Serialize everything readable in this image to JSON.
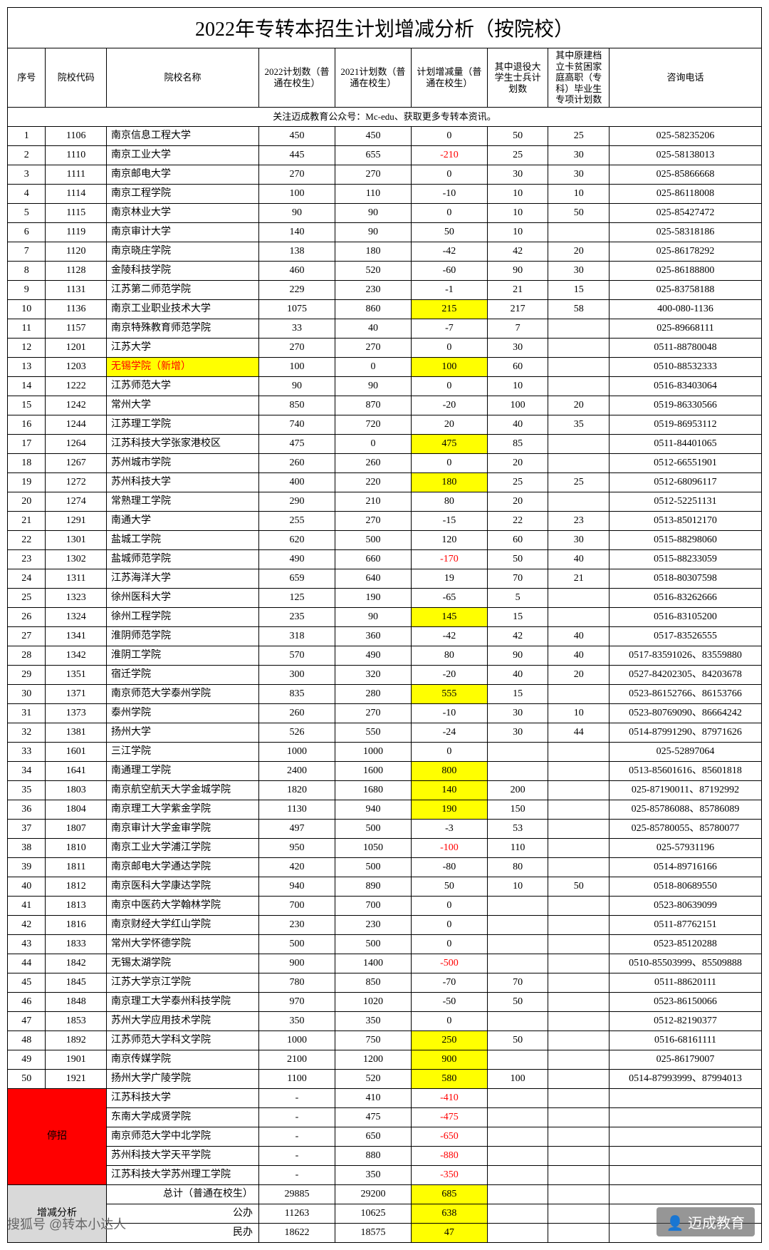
{
  "title": "2022年专转本招生计划增减分析（按院校）",
  "headers": {
    "seq": "序号",
    "code": "院校代码",
    "name": "院校名称",
    "plan2022": "2022计划数（普通在校生）",
    "plan2021": "2021计划数（普通在校生）",
    "diff": "计划增减量（普通在校生）",
    "soldier": "其中退役大学生士兵计划数",
    "poverty": "其中原建档立卡贫困家庭高职（专科）毕业生专项计划数",
    "tel": "咨询电话"
  },
  "notice": "关注迈成教育公众号：Mc-edu、获取更多专转本资讯。",
  "rows": [
    {
      "seq": "1",
      "code": "1106",
      "name": "南京信息工程大学",
      "p22": "450",
      "p21": "450",
      "diff": "0",
      "sol": "50",
      "pov": "25",
      "tel": "025-58235206"
    },
    {
      "seq": "2",
      "code": "1110",
      "name": "南京工业大学",
      "p22": "445",
      "p21": "655",
      "diff": "-210",
      "diffRed": true,
      "sol": "25",
      "pov": "30",
      "tel": "025-58138013"
    },
    {
      "seq": "3",
      "code": "1111",
      "name": "南京邮电大学",
      "p22": "270",
      "p21": "270",
      "diff": "0",
      "sol": "30",
      "pov": "30",
      "tel": "025-85866668"
    },
    {
      "seq": "4",
      "code": "1114",
      "name": "南京工程学院",
      "p22": "100",
      "p21": "110",
      "diff": "-10",
      "sol": "10",
      "pov": "10",
      "tel": "025-86118008"
    },
    {
      "seq": "5",
      "code": "1115",
      "name": "南京林业大学",
      "p22": "90",
      "p21": "90",
      "diff": "0",
      "sol": "10",
      "pov": "50",
      "tel": "025-85427472"
    },
    {
      "seq": "6",
      "code": "1119",
      "name": "南京审计大学",
      "p22": "140",
      "p21": "90",
      "diff": "50",
      "sol": "10",
      "pov": "",
      "tel": "025-58318186"
    },
    {
      "seq": "7",
      "code": "1120",
      "name": "南京晓庄学院",
      "p22": "138",
      "p21": "180",
      "diff": "-42",
      "sol": "42",
      "pov": "20",
      "tel": "025-86178292"
    },
    {
      "seq": "8",
      "code": "1128",
      "name": "金陵科技学院",
      "p22": "460",
      "p21": "520",
      "diff": "-60",
      "sol": "90",
      "pov": "30",
      "tel": "025-86188800"
    },
    {
      "seq": "9",
      "code": "1131",
      "name": "江苏第二师范学院",
      "p22": "229",
      "p21": "230",
      "diff": "-1",
      "sol": "21",
      "pov": "15",
      "tel": "025-83758188"
    },
    {
      "seq": "10",
      "code": "1136",
      "name": "南京工业职业技术大学",
      "p22": "1075",
      "p21": "860",
      "diff": "215",
      "diffYellow": true,
      "sol": "217",
      "pov": "58",
      "tel": "400-080-1136"
    },
    {
      "seq": "11",
      "code": "1157",
      "name": "南京特殊教育师范学院",
      "p22": "33",
      "p21": "40",
      "diff": "-7",
      "sol": "7",
      "pov": "",
      "tel": "025-89668111"
    },
    {
      "seq": "12",
      "code": "1201",
      "name": "江苏大学",
      "p22": "270",
      "p21": "270",
      "diff": "0",
      "sol": "30",
      "pov": "",
      "tel": "0511-88780048"
    },
    {
      "seq": "13",
      "code": "1203",
      "name": "无锡学院（新增）",
      "nameYellow": true,
      "nameRed": true,
      "p22": "100",
      "p21": "0",
      "diff": "100",
      "diffYellow": true,
      "sol": "60",
      "pov": "",
      "tel": "0510-88532333"
    },
    {
      "seq": "14",
      "code": "1222",
      "name": "江苏师范大学",
      "p22": "90",
      "p21": "90",
      "diff": "0",
      "sol": "10",
      "pov": "",
      "tel": "0516-83403064"
    },
    {
      "seq": "15",
      "code": "1242",
      "name": "常州大学",
      "p22": "850",
      "p21": "870",
      "diff": "-20",
      "sol": "100",
      "pov": "20",
      "tel": "0519-86330566"
    },
    {
      "seq": "16",
      "code": "1244",
      "name": "江苏理工学院",
      "p22": "740",
      "p21": "720",
      "diff": "20",
      "sol": "40",
      "pov": "35",
      "tel": "0519-86953112"
    },
    {
      "seq": "17",
      "code": "1264",
      "name": "江苏科技大学张家港校区",
      "p22": "475",
      "p21": "0",
      "diff": "475",
      "diffYellow": true,
      "sol": "85",
      "pov": "",
      "tel": "0511-84401065"
    },
    {
      "seq": "18",
      "code": "1267",
      "name": "苏州城市学院",
      "p22": "260",
      "p21": "260",
      "diff": "0",
      "sol": "20",
      "pov": "",
      "tel": "0512-66551901"
    },
    {
      "seq": "19",
      "code": "1272",
      "name": "苏州科技大学",
      "p22": "400",
      "p21": "220",
      "diff": "180",
      "diffYellow": true,
      "sol": "25",
      "pov": "25",
      "tel": "0512-68096117"
    },
    {
      "seq": "20",
      "code": "1274",
      "name": "常熟理工学院",
      "p22": "290",
      "p21": "210",
      "diff": "80",
      "sol": "20",
      "pov": "",
      "tel": "0512-52251131"
    },
    {
      "seq": "21",
      "code": "1291",
      "name": "南通大学",
      "p22": "255",
      "p21": "270",
      "diff": "-15",
      "sol": "22",
      "pov": "23",
      "tel": "0513-85012170"
    },
    {
      "seq": "22",
      "code": "1301",
      "name": "盐城工学院",
      "p22": "620",
      "p21": "500",
      "diff": "120",
      "sol": "60",
      "pov": "30",
      "tel": "0515-88298060"
    },
    {
      "seq": "23",
      "code": "1302",
      "name": "盐城师范学院",
      "p22": "490",
      "p21": "660",
      "diff": "-170",
      "diffRed": true,
      "sol": "50",
      "pov": "40",
      "tel": "0515-88233059"
    },
    {
      "seq": "24",
      "code": "1311",
      "name": "江苏海洋大学",
      "p22": "659",
      "p21": "640",
      "diff": "19",
      "sol": "70",
      "pov": "21",
      "tel": "0518-80307598"
    },
    {
      "seq": "25",
      "code": "1323",
      "name": "徐州医科大学",
      "p22": "125",
      "p21": "190",
      "diff": "-65",
      "sol": "5",
      "pov": "",
      "tel": "0516-83262666"
    },
    {
      "seq": "26",
      "code": "1324",
      "name": "徐州工程学院",
      "p22": "235",
      "p21": "90",
      "diff": "145",
      "diffYellow": true,
      "sol": "15",
      "pov": "",
      "tel": "0516-83105200"
    },
    {
      "seq": "27",
      "code": "1341",
      "name": "淮阴师范学院",
      "p22": "318",
      "p21": "360",
      "diff": "-42",
      "sol": "42",
      "pov": "40",
      "tel": "0517-83526555"
    },
    {
      "seq": "28",
      "code": "1342",
      "name": "淮阴工学院",
      "p22": "570",
      "p21": "490",
      "diff": "80",
      "sol": "90",
      "pov": "40",
      "tel": "0517-83591026、83559880"
    },
    {
      "seq": "29",
      "code": "1351",
      "name": "宿迁学院",
      "p22": "300",
      "p21": "320",
      "diff": "-20",
      "sol": "40",
      "pov": "20",
      "tel": "0527-84202305、84203678"
    },
    {
      "seq": "30",
      "code": "1371",
      "name": "南京师范大学泰州学院",
      "p22": "835",
      "p21": "280",
      "diff": "555",
      "diffYellow": true,
      "sol": "15",
      "pov": "",
      "tel": "0523-86152766、86153766"
    },
    {
      "seq": "31",
      "code": "1373",
      "name": "泰州学院",
      "p22": "260",
      "p21": "270",
      "diff": "-10",
      "sol": "30",
      "pov": "10",
      "tel": "0523-80769090、86664242"
    },
    {
      "seq": "32",
      "code": "1381",
      "name": "扬州大学",
      "p22": "526",
      "p21": "550",
      "diff": "-24",
      "sol": "30",
      "pov": "44",
      "tel": "0514-87991290、87971626"
    },
    {
      "seq": "33",
      "code": "1601",
      "name": "三江学院",
      "p22": "1000",
      "p21": "1000",
      "diff": "0",
      "sol": "",
      "pov": "",
      "tel": "025-52897064"
    },
    {
      "seq": "34",
      "code": "1641",
      "name": "南通理工学院",
      "p22": "2400",
      "p21": "1600",
      "diff": "800",
      "diffYellow": true,
      "sol": "",
      "pov": "",
      "tel": "0513-85601616、85601818"
    },
    {
      "seq": "35",
      "code": "1803",
      "name": "南京航空航天大学金城学院",
      "p22": "1820",
      "p21": "1680",
      "diff": "140",
      "diffYellow": true,
      "sol": "200",
      "pov": "",
      "tel": "025-87190011、87192992"
    },
    {
      "seq": "36",
      "code": "1804",
      "name": "南京理工大学紫金学院",
      "p22": "1130",
      "p21": "940",
      "diff": "190",
      "diffYellow": true,
      "sol": "150",
      "pov": "",
      "tel": "025-85786088、85786089"
    },
    {
      "seq": "37",
      "code": "1807",
      "name": "南京审计大学金审学院",
      "p22": "497",
      "p21": "500",
      "diff": "-3",
      "sol": "53",
      "pov": "",
      "tel": "025-85780055、85780077"
    },
    {
      "seq": "38",
      "code": "1810",
      "name": "南京工业大学浦江学院",
      "p22": "950",
      "p21": "1050",
      "diff": "-100",
      "diffRed": true,
      "sol": "110",
      "pov": "",
      "tel": "025-57931196"
    },
    {
      "seq": "39",
      "code": "1811",
      "name": "南京邮电大学通达学院",
      "p22": "420",
      "p21": "500",
      "diff": "-80",
      "sol": "80",
      "pov": "",
      "tel": "0514-89716166"
    },
    {
      "seq": "40",
      "code": "1812",
      "name": "南京医科大学康达学院",
      "p22": "940",
      "p21": "890",
      "diff": "50",
      "sol": "10",
      "pov": "50",
      "tel": "0518-80689550"
    },
    {
      "seq": "41",
      "code": "1813",
      "name": "南京中医药大学翰林学院",
      "p22": "700",
      "p21": "700",
      "diff": "0",
      "sol": "",
      "pov": "",
      "tel": "0523-80639099"
    },
    {
      "seq": "42",
      "code": "1816",
      "name": "南京财经大学红山学院",
      "p22": "230",
      "p21": "230",
      "diff": "0",
      "sol": "",
      "pov": "",
      "tel": "0511-87762151"
    },
    {
      "seq": "43",
      "code": "1833",
      "name": "常州大学怀德学院",
      "p22": "500",
      "p21": "500",
      "diff": "0",
      "sol": "",
      "pov": "",
      "tel": "0523-85120288"
    },
    {
      "seq": "44",
      "code": "1842",
      "name": "无锡太湖学院",
      "p22": "900",
      "p21": "1400",
      "diff": "-500",
      "diffRed": true,
      "sol": "",
      "pov": "",
      "tel": "0510-85503999、85509888"
    },
    {
      "seq": "45",
      "code": "1845",
      "name": "江苏大学京江学院",
      "p22": "780",
      "p21": "850",
      "diff": "-70",
      "sol": "70",
      "pov": "",
      "tel": "0511-88620111"
    },
    {
      "seq": "46",
      "code": "1848",
      "name": "南京理工大学泰州科技学院",
      "p22": "970",
      "p21": "1020",
      "diff": "-50",
      "sol": "50",
      "pov": "",
      "tel": "0523-86150066"
    },
    {
      "seq": "47",
      "code": "1853",
      "name": "苏州大学应用技术学院",
      "p22": "350",
      "p21": "350",
      "diff": "0",
      "sol": "",
      "pov": "",
      "tel": "0512-82190377"
    },
    {
      "seq": "48",
      "code": "1892",
      "name": "江苏师范大学科文学院",
      "p22": "1000",
      "p21": "750",
      "diff": "250",
      "diffYellow": true,
      "sol": "50",
      "pov": "",
      "tel": "0516-68161111"
    },
    {
      "seq": "49",
      "code": "1901",
      "name": "南京传媒学院",
      "p22": "2100",
      "p21": "1200",
      "diff": "900",
      "diffYellow": true,
      "sol": "",
      "pov": "",
      "tel": "025-86179007"
    },
    {
      "seq": "50",
      "code": "1921",
      "name": "扬州大学广陵学院",
      "p22": "1100",
      "p21": "520",
      "diff": "580",
      "diffYellow": true,
      "sol": "100",
      "pov": "",
      "tel": "0514-87993999、87994013"
    }
  ],
  "stopLabel": "停招",
  "stopRows": [
    {
      "name": "江苏科技大学",
      "p22": "-",
      "p21": "410",
      "diff": "-410"
    },
    {
      "name": "东南大学成贤学院",
      "p22": "-",
      "p21": "475",
      "diff": "-475"
    },
    {
      "name": "南京师范大学中北学院",
      "p22": "-",
      "p21": "650",
      "diff": "-650"
    },
    {
      "name": "苏州科技大学天平学院",
      "p22": "-",
      "p21": "880",
      "diff": "-880"
    },
    {
      "name": "江苏科技大学苏州理工学院",
      "p22": "-",
      "p21": "350",
      "diff": "-350"
    }
  ],
  "summaryLabel": "增减分析",
  "summary": [
    {
      "name": "总计（普通在校生）",
      "p22": "29885",
      "p21": "29200",
      "diff": "685"
    },
    {
      "name": "公办",
      "p22": "11263",
      "p21": "10625",
      "diff": "638"
    },
    {
      "name": "民办",
      "p22": "18622",
      "p21": "18575",
      "diff": "47"
    }
  ],
  "footerLeft": "搜狐号 @转本小达人",
  "footerRight": "👤 迈成教育",
  "colors": {
    "yellow": "#ffff00",
    "red": "#ff0000",
    "grey": "#d9d9d9"
  }
}
